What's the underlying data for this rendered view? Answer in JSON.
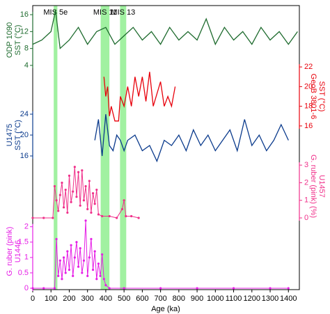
{
  "chart_data": {
    "type": "line",
    "xlabel": "Age (ka)",
    "xlim": [
      0,
      1460
    ],
    "xticks": [
      0,
      100,
      200,
      300,
      400,
      500,
      600,
      700,
      800,
      900,
      1000,
      1100,
      1200,
      1300,
      1400
    ],
    "band_color": "#90ee90",
    "bands": [
      {
        "label": "MIS 5e",
        "range": [
          115,
          135
        ]
      },
      {
        "label": "MIS 11",
        "range": [
          372,
          420
        ]
      },
      {
        "label": "MIS 13",
        "range": [
          478,
          512
        ]
      }
    ],
    "panels": [
      {
        "ylabel": [
          "ODP 1090",
          "SST (°C)"
        ],
        "side": "left",
        "color": "#1e6b2e",
        "markers": false,
        "ylim": [
          3,
          17
        ],
        "yticks": [
          4,
          8,
          12,
          16
        ],
        "x": [
          0,
          50,
          100,
          125,
          150,
          200,
          250,
          300,
          350,
          400,
          450,
          500,
          550,
          600,
          650,
          700,
          750,
          800,
          850,
          900,
          950,
          1000,
          1050,
          1100,
          1150,
          1200,
          1250,
          1300,
          1350,
          1400,
          1450
        ],
        "values": [
          9,
          10,
          12,
          17,
          8,
          10,
          13,
          9,
          12,
          13,
          9,
          11,
          13,
          10,
          12,
          9,
          13,
          10,
          12,
          10,
          15,
          9,
          13,
          10,
          12,
          9,
          13,
          10,
          12,
          9,
          12
        ]
      },
      {
        "ylabel": [
          "GeoB 3801-6",
          "SST (°C)"
        ],
        "side": "right",
        "color": "#e8000b",
        "markers": false,
        "ylim": [
          15,
          23
        ],
        "yticks": [
          16,
          18,
          20,
          22
        ],
        "x": [
          390,
          400,
          410,
          420,
          430,
          450,
          470,
          480,
          500,
          520,
          540,
          560,
          580,
          600,
          620,
          640,
          660,
          700,
          720,
          740,
          760,
          780
        ],
        "values": [
          21,
          19,
          20,
          17,
          18,
          16.5,
          16.5,
          19,
          18,
          20,
          18,
          21,
          19,
          21,
          18.5,
          21.5,
          18,
          20.5,
          18,
          19,
          18,
          20
        ]
      },
      {
        "ylabel": [
          "U1475",
          "SST (°C)"
        ],
        "side": "left",
        "color": "#0a3a8c",
        "markers": false,
        "ylim": [
          14,
          26
        ],
        "yticks": [
          16,
          20,
          24
        ],
        "x": [
          340,
          360,
          380,
          400,
          420,
          440,
          460,
          480,
          500,
          520,
          560,
          600,
          640,
          680,
          720,
          760,
          800,
          840,
          880,
          920,
          960,
          1000,
          1040,
          1080,
          1120,
          1160,
          1200,
          1240,
          1280,
          1320,
          1360,
          1400
        ],
        "values": [
          19,
          23,
          16,
          24,
          18,
          17,
          20,
          19,
          17,
          19,
          20,
          17,
          18,
          15,
          19,
          18,
          20,
          17,
          21,
          18,
          20,
          17,
          19,
          21,
          17,
          23,
          18,
          20,
          17,
          19,
          22,
          19
        ]
      },
      {
        "ylabel": [
          "G. ruber (pink) (%)",
          "U1457"
        ],
        "side": "right",
        "color": "#f0308a",
        "markers": true,
        "ylim": [
          0,
          3.6
        ],
        "yticks": [
          0,
          1,
          2,
          3
        ],
        "x": [
          0,
          60,
          110,
          120,
          130,
          140,
          150,
          160,
          170,
          180,
          190,
          200,
          210,
          220,
          230,
          240,
          250,
          260,
          270,
          280,
          290,
          300,
          310,
          320,
          330,
          340,
          350,
          360,
          380,
          420,
          460,
          490,
          500,
          510,
          540,
          580
        ],
        "values": [
          0,
          0,
          0,
          1.8,
          1.0,
          0.4,
          1.3,
          2.0,
          0.6,
          1.6,
          0.3,
          2.4,
          0.9,
          1.5,
          2.9,
          1.2,
          2.6,
          0.7,
          2.7,
          1.0,
          1.8,
          0.5,
          2.1,
          0.3,
          1.4,
          0.8,
          1.6,
          0.2,
          0.1,
          0.1,
          0,
          0.5,
          1.0,
          0.1,
          0.1,
          0
        ]
      },
      {
        "ylabel": [
          "G. ruber (pink)",
          "U1446"
        ],
        "side": "left",
        "color": "#e61ee6",
        "markers": true,
        "ylim": [
          0,
          2.4
        ],
        "yticks": [
          0,
          0.5,
          1,
          1.5,
          2
        ],
        "x": [
          0,
          60,
          120,
          130,
          140,
          150,
          160,
          170,
          180,
          190,
          200,
          210,
          220,
          230,
          240,
          250,
          260,
          270,
          280,
          290,
          300,
          310,
          320,
          330,
          340,
          350,
          360,
          370,
          380,
          390,
          400,
          420,
          500,
          700,
          900,
          1100,
          1300,
          1400
        ],
        "values": [
          0,
          0,
          0,
          1.6,
          0.4,
          0.9,
          0.3,
          1.0,
          0.5,
          1.2,
          0.6,
          1.4,
          0.4,
          1.0,
          1.5,
          0.7,
          1.3,
          0.5,
          0.9,
          2.2,
          0.4,
          1.0,
          1.6,
          0.6,
          1.2,
          0.3,
          0.8,
          0.4,
          1.1,
          0.3,
          0.1,
          0,
          0,
          0,
          0,
          0,
          0,
          0
        ]
      }
    ]
  }
}
